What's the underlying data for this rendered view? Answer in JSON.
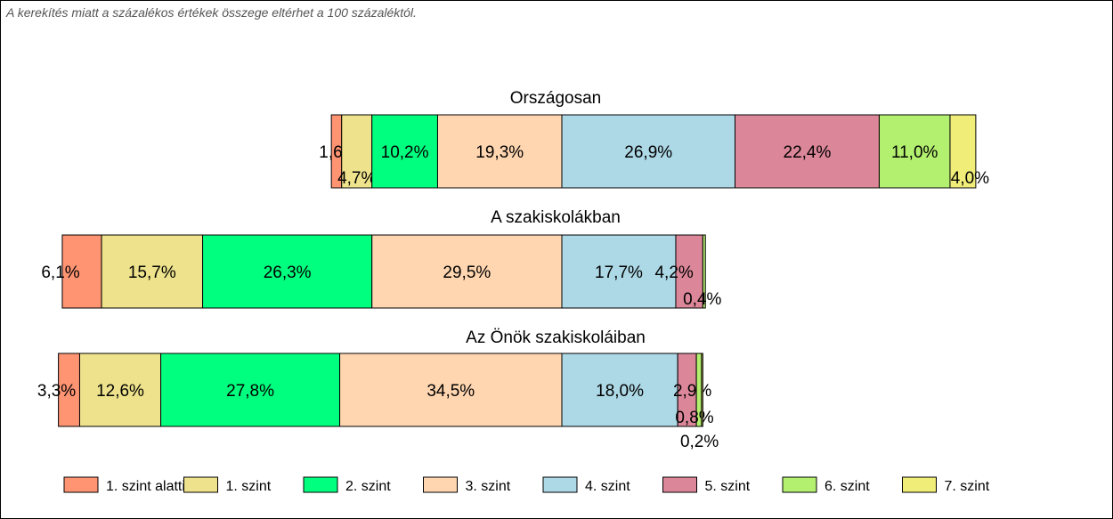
{
  "note": "A kerekítés miatt a  százalékos értékek összege eltérhet a 100 százaléktól.",
  "chart_data": {
    "type": "bar",
    "orientation": "horizontal",
    "stacked": true,
    "categories": [
      "Országosan",
      "A szakiskolákban",
      "Az Önök szakiskoláiban"
    ],
    "series": [
      {
        "name": "1. szint alatti",
        "color": "#FF9473",
        "values": [
          1.6,
          6.1,
          3.3
        ],
        "labels": [
          "1,6%",
          "6,1%",
          "3,3%"
        ]
      },
      {
        "name": "1. szint",
        "color": "#EEE38C",
        "values": [
          4.7,
          15.7,
          12.6
        ],
        "labels": [
          "4,7%",
          "15,7%",
          "12,6%"
        ]
      },
      {
        "name": "2. szint",
        "color": "#00FF7F",
        "values": [
          10.2,
          26.3,
          27.8
        ],
        "labels": [
          "10,2%",
          "26,3%",
          "27,8%"
        ]
      },
      {
        "name": "3. szint",
        "color": "#FFD6B0",
        "values": [
          19.3,
          29.5,
          34.5
        ],
        "labels": [
          "19,3%",
          "29,5%",
          "34,5%"
        ]
      },
      {
        "name": "4. szint",
        "color": "#ADD8E6",
        "values": [
          26.9,
          17.7,
          18.0
        ],
        "labels": [
          "26,9%",
          "17,7%",
          "18,0%"
        ]
      },
      {
        "name": "5. szint",
        "color": "#DB8799",
        "values": [
          22.4,
          4.2,
          2.9
        ],
        "labels": [
          "22,4%",
          "4,2%",
          "2,9%"
        ]
      },
      {
        "name": "6. szint",
        "color": "#B4F070",
        "values": [
          11.0,
          0.4,
          0.8
        ],
        "labels": [
          "11,0%",
          "0,4%",
          "0,8%"
        ]
      },
      {
        "name": "7. szint",
        "color": "#F0EE78",
        "values": [
          4.0,
          0.0,
          0.2
        ],
        "labels": [
          "4,0%",
          "",
          "0,2%"
        ]
      }
    ],
    "alignment": "bars aligned on the boundary between 3. szint and 4. szint",
    "legend_position": "bottom"
  }
}
